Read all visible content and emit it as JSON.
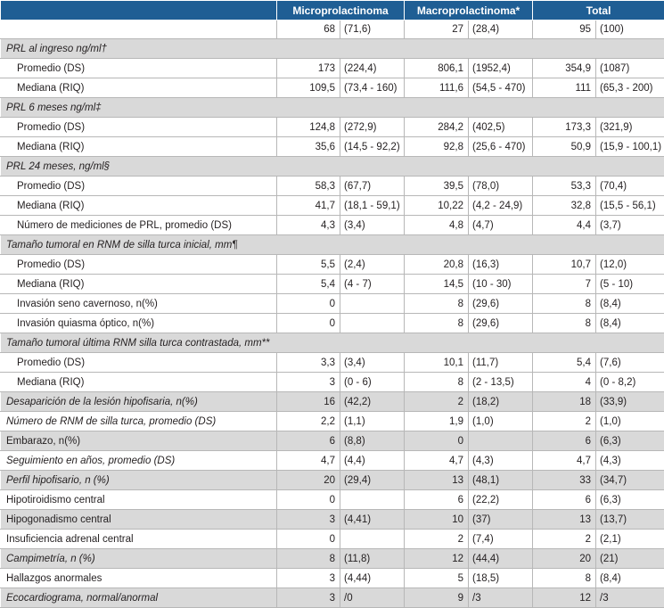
{
  "headers": [
    "",
    "Microprolactinoma",
    "Macroprolactinoma*",
    "Total"
  ],
  "counts": [
    "68",
    "(71,6)",
    "27",
    "(28,4)",
    "95",
    "(100)"
  ],
  "rows": [
    {
      "type": "section",
      "label": "PRL al ingreso ng/ml†"
    },
    {
      "type": "sub",
      "label": "Promedio (DS)",
      "v": [
        "173",
        "(224,4)",
        "806,1",
        "(1952,4)",
        "354,9",
        "(1087)"
      ]
    },
    {
      "type": "sub",
      "label": "Mediana (RIQ)",
      "v": [
        "109,5",
        "(73,4 - 160)",
        "111,6",
        "(54,5 - 470)",
        "111",
        "(65,3 - 200)"
      ]
    },
    {
      "type": "section",
      "label": "PRL 6 meses ng/ml‡"
    },
    {
      "type": "sub",
      "label": "Promedio (DS)",
      "v": [
        "124,8",
        "(272,9)",
        "284,2",
        "(402,5)",
        "173,3",
        "(321,9)"
      ]
    },
    {
      "type": "sub",
      "label": "Mediana (RIQ)",
      "v": [
        "35,6",
        "(14,5 - 92,2)",
        "92,8",
        "(25,6 - 470)",
        "50,9",
        "(15,9 - 100,1)"
      ]
    },
    {
      "type": "section",
      "label": "PRL 24 meses, ng/ml§"
    },
    {
      "type": "sub",
      "label": "Promedio (DS)",
      "v": [
        "58,3",
        "(67,7)",
        "39,5",
        "(78,0)",
        "53,3",
        "(70,4)"
      ]
    },
    {
      "type": "sub",
      "label": "Mediana (RIQ)",
      "v": [
        "41,7",
        "(18,1 - 59,1)",
        "10,22",
        "(4,2 - 24,9)",
        "32,8",
        "(15,5 - 56,1)"
      ]
    },
    {
      "type": "sub",
      "label": "Número de mediciones de PRL, promedio (DS)",
      "v": [
        "4,3",
        "(3,4)",
        "4,8",
        "(4,7)",
        "4,4",
        "(3,7)"
      ]
    },
    {
      "type": "section",
      "label": "Tamaño tumoral en RNM de silla turca inicial, mm¶"
    },
    {
      "type": "sub",
      "label": "Promedio (DS)",
      "v": [
        "5,5",
        "(2,4)",
        "20,8",
        "(16,3)",
        "10,7",
        "(12,0)"
      ]
    },
    {
      "type": "sub",
      "label": "Mediana (RIQ)",
      "v": [
        "5,4",
        "(4 - 7)",
        "14,5",
        "(10 - 30)",
        "7",
        "(5 - 10)"
      ]
    },
    {
      "type": "sub",
      "label": "Invasión seno cavernoso, n(%)",
      "v": [
        "0",
        "",
        "8",
        "(29,6)",
        "8",
        "(8,4)"
      ]
    },
    {
      "type": "sub",
      "label": "Invasión quiasma óptico, n(%)",
      "v": [
        "0",
        "",
        "8",
        "(29,6)",
        "8",
        "(8,4)"
      ]
    },
    {
      "type": "section",
      "label": "Tamaño tumoral última RNM silla turca contrastada, mm**"
    },
    {
      "type": "sub",
      "label": "Promedio (DS)",
      "v": [
        "3,3",
        "(3,4)",
        "10,1",
        "(11,7)",
        "5,4",
        "(7,6)"
      ]
    },
    {
      "type": "sub",
      "label": "Mediana (RIQ)",
      "v": [
        "3",
        "(0 - 6)",
        "8",
        "(2 - 13,5)",
        "4",
        "(0 - 8,2)"
      ]
    },
    {
      "type": "gray",
      "label": "Desaparición de la lesión hipofisaria, n(%)",
      "v": [
        "16",
        "(42,2)",
        "2",
        "(18,2)",
        "18",
        "(33,9)"
      ]
    },
    {
      "type": "plain-italic",
      "label": "Número de RNM de silla turca, promedio (DS)",
      "v": [
        "2,2",
        "(1,1)",
        "1,9",
        "(1,0)",
        "2",
        "(1,0)"
      ]
    },
    {
      "type": "gray-normal",
      "label": "Embarazo, n(%)",
      "v": [
        "6",
        "(8,8)",
        "0",
        "",
        "6",
        "(6,3)"
      ]
    },
    {
      "type": "plain-italic",
      "label": "Seguimiento en años, promedio (DS)",
      "v": [
        "4,7",
        "(4,4)",
        "4,7",
        "(4,3)",
        "4,7",
        "(4,3)"
      ]
    },
    {
      "type": "gray",
      "label": "Perfil hipofisario, n (%)",
      "v": [
        "20",
        "(29,4)",
        "13",
        "(48,1)",
        "33",
        "(34,7)"
      ]
    },
    {
      "type": "plain",
      "label": "Hipotiroidismo central",
      "v": [
        "0",
        "",
        "6",
        "(22,2)",
        "6",
        "(6,3)"
      ]
    },
    {
      "type": "gray-normal",
      "label": "Hipogonadismo central",
      "v": [
        "3",
        "(4,41)",
        "10",
        "(37)",
        "13",
        "(13,7)"
      ]
    },
    {
      "type": "plain",
      "label": "Insuficiencia adrenal central",
      "v": [
        "0",
        "",
        "2",
        "(7,4)",
        "2",
        "(2,1)"
      ]
    },
    {
      "type": "gray",
      "label": "Campimetría, n (%)",
      "v": [
        "8",
        "(11,8)",
        "12",
        "(44,4)",
        "20",
        "(21)"
      ]
    },
    {
      "type": "plain",
      "label": "Hallazgos anormales",
      "v": [
        "3",
        "(4,44)",
        "5",
        "(18,5)",
        "8",
        "(8,4)"
      ]
    },
    {
      "type": "gray",
      "label": "Ecocardiograma, normal/anormal",
      "v": [
        "3",
        "/0",
        "9",
        "/3",
        "12",
        "/3"
      ]
    }
  ]
}
